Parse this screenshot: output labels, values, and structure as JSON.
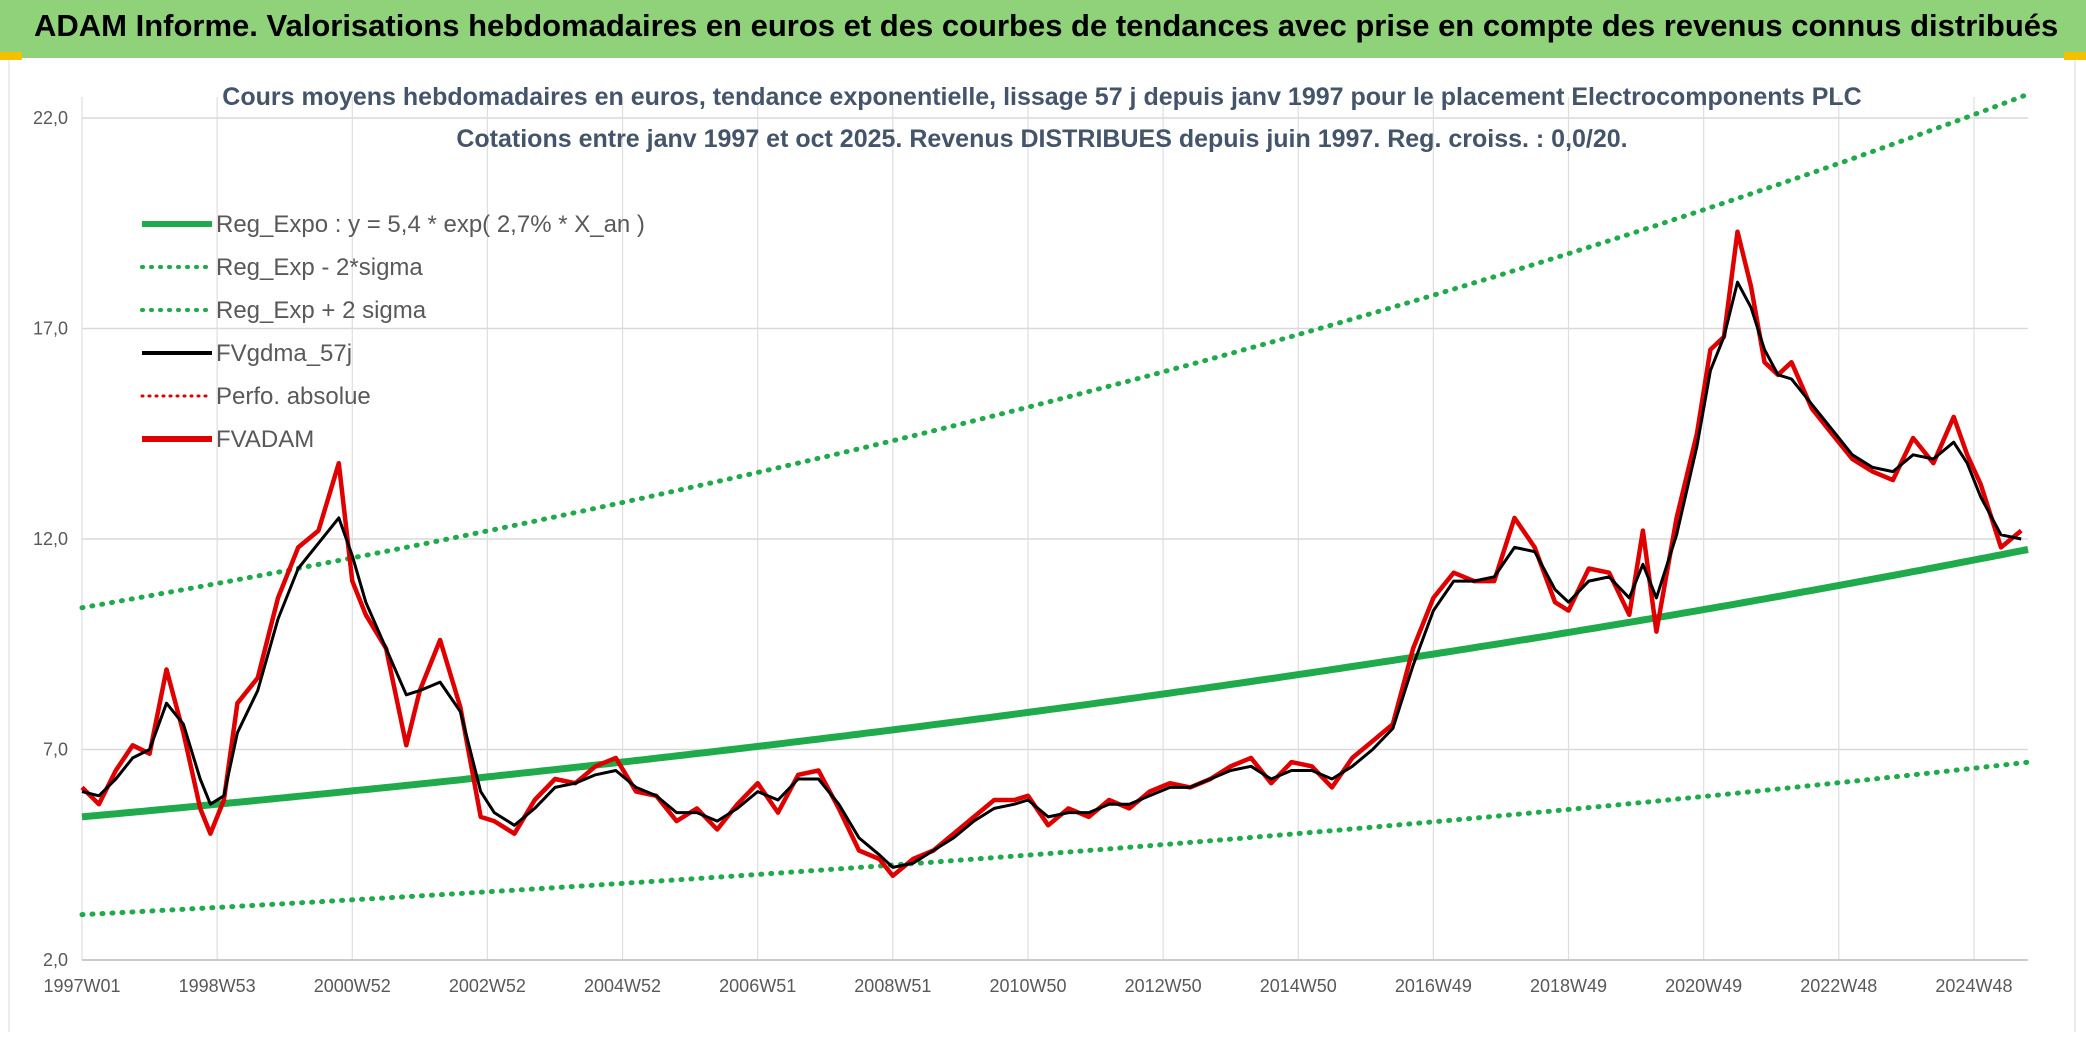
{
  "header": {
    "title": "ADAM Informe. Valorisations hebdomadaires en euros et des courbes de tendances avec prise en compte des revenus connus distribués",
    "background": "#8fd27a"
  },
  "chart_data": {
    "type": "line",
    "title": "Cours moyens hebdomadaires en euros, tendance exponentielle, lissage 57 j depuis janv 1997 pour le placement Electrocomponents PLC",
    "subtitle": "Cotations entre janv 1997 et oct 2025. Revenus DISTRIBUES depuis juin 1997. Reg. croiss. : 0,0/20.",
    "xlabel": "",
    "ylabel": "",
    "xlim": [
      1997.0,
      2025.8
    ],
    "ylim": [
      2.0,
      22.5
    ],
    "yticks": [
      "2,0",
      "7,0",
      "12,0",
      "17,0",
      "22,0"
    ],
    "ytick_values": [
      2.0,
      7.0,
      12.0,
      17.0,
      22.0
    ],
    "xticks": [
      "1997W01",
      "1998W53",
      "2000W52",
      "2002W52",
      "2004W52",
      "2006W51",
      "2008W51",
      "2010W50",
      "2012W50",
      "2014W50",
      "2016W49",
      "2018W49",
      "2020W49",
      "2022W48",
      "2024W48"
    ],
    "xtick_values": [
      1997.0,
      1999.0,
      2001.0,
      2003.0,
      2005.0,
      2007.0,
      2009.0,
      2011.0,
      2013.0,
      2015.0,
      2017.0,
      2019.0,
      2021.0,
      2023.0,
      2025.0
    ],
    "grid": true,
    "legend_position": "top-left",
    "legend": [
      {
        "name": "Reg_Expo : y = 5,4 * exp( 2,7% *  X_an )",
        "color": "#1faa4b",
        "style": "solid-thick"
      },
      {
        "name": "Reg_Exp - 2*sigma",
        "color": "#1faa4b",
        "style": "dotted"
      },
      {
        "name": "Reg_Exp + 2 sigma",
        "color": "#1faa4b",
        "style": "dotted"
      },
      {
        "name": "FVgdma_57j",
        "color": "#000000",
        "style": "solid"
      },
      {
        "name": "Perfo. absolue",
        "color": "#e00000",
        "style": "dotted"
      },
      {
        "name": "FVADAM",
        "color": "#e00000",
        "style": "solid-thick"
      }
    ],
    "regression": {
      "a": 5.4,
      "rate": 0.027,
      "x0": 1997.0,
      "lower_factor": 0.57,
      "upper_factor": 1.92
    },
    "x": [
      1997.0,
      1997.25,
      1997.5,
      1997.75,
      1998.0,
      1998.25,
      1998.5,
      1998.75,
      1998.9,
      1999.1,
      1999.3,
      1999.6,
      1999.9,
      2000.2,
      2000.5,
      2000.8,
      2001.0,
      2001.2,
      2001.5,
      2001.8,
      2002.0,
      2002.3,
      2002.6,
      2002.9,
      2003.1,
      2003.4,
      2003.7,
      2004.0,
      2004.3,
      2004.6,
      2004.9,
      2005.2,
      2005.5,
      2005.8,
      2006.1,
      2006.4,
      2006.7,
      2007.0,
      2007.3,
      2007.6,
      2007.9,
      2008.2,
      2008.5,
      2008.8,
      2009.0,
      2009.3,
      2009.6,
      2009.9,
      2010.2,
      2010.5,
      2010.8,
      2011.0,
      2011.3,
      2011.6,
      2011.9,
      2012.2,
      2012.5,
      2012.8,
      2013.1,
      2013.4,
      2013.7,
      2014.0,
      2014.3,
      2014.6,
      2014.9,
      2015.2,
      2015.5,
      2015.8,
      2016.1,
      2016.4,
      2016.7,
      2017.0,
      2017.3,
      2017.6,
      2017.9,
      2018.2,
      2018.5,
      2018.8,
      2019.0,
      2019.3,
      2019.6,
      2019.9,
      2020.1,
      2020.3,
      2020.6,
      2020.9,
      2021.1,
      2021.3,
      2021.5,
      2021.7,
      2021.9,
      2022.1,
      2022.3,
      2022.6,
      2022.9,
      2023.2,
      2023.5,
      2023.8,
      2024.1,
      2024.4,
      2024.7,
      2024.9,
      2025.1,
      2025.4,
      2025.7
    ],
    "fvadam": [
      6.1,
      5.7,
      6.5,
      7.1,
      6.9,
      8.9,
      7.4,
      5.6,
      5.0,
      5.8,
      8.1,
      8.7,
      10.6,
      11.8,
      12.2,
      13.8,
      11.0,
      10.2,
      9.4,
      7.1,
      8.4,
      9.6,
      8.0,
      5.4,
      5.3,
      5.0,
      5.8,
      6.3,
      6.2,
      6.6,
      6.8,
      6.0,
      5.9,
      5.3,
      5.6,
      5.1,
      5.7,
      6.2,
      5.5,
      6.4,
      6.5,
      5.6,
      4.6,
      4.4,
      4.0,
      4.4,
      4.6,
      5.0,
      5.4,
      5.8,
      5.8,
      5.9,
      5.2,
      5.6,
      5.4,
      5.8,
      5.6,
      6.0,
      6.2,
      6.1,
      6.3,
      6.6,
      6.8,
      6.2,
      6.7,
      6.6,
      6.1,
      6.8,
      7.2,
      7.6,
      9.4,
      10.6,
      11.2,
      11.0,
      11.0,
      12.5,
      11.8,
      10.5,
      10.3,
      11.3,
      11.2,
      10.2,
      12.2,
      9.8,
      12.5,
      14.5,
      16.5,
      16.8,
      19.3,
      18.0,
      16.2,
      15.9,
      16.2,
      15.1,
      14.5,
      13.9,
      13.6,
      13.4,
      14.4,
      13.8,
      14.9,
      14.0,
      13.3,
      11.8,
      12.2
    ],
    "fvgdma_57j": [
      6.0,
      5.9,
      6.3,
      6.8,
      7.0,
      8.1,
      7.6,
      6.3,
      5.7,
      5.9,
      7.4,
      8.4,
      10.1,
      11.3,
      11.9,
      12.5,
      11.6,
      10.5,
      9.4,
      8.3,
      8.4,
      8.6,
      7.9,
      6.0,
      5.5,
      5.2,
      5.6,
      6.1,
      6.2,
      6.4,
      6.5,
      6.1,
      5.9,
      5.5,
      5.5,
      5.3,
      5.6,
      6.0,
      5.8,
      6.3,
      6.3,
      5.7,
      4.9,
      4.5,
      4.2,
      4.3,
      4.6,
      4.9,
      5.3,
      5.6,
      5.7,
      5.8,
      5.4,
      5.5,
      5.5,
      5.7,
      5.7,
      5.9,
      6.1,
      6.1,
      6.3,
      6.5,
      6.6,
      6.3,
      6.5,
      6.5,
      6.3,
      6.6,
      7.0,
      7.5,
      9.0,
      10.3,
      11.0,
      11.0,
      11.1,
      11.8,
      11.7,
      10.8,
      10.5,
      11.0,
      11.1,
      10.6,
      11.4,
      10.6,
      12.1,
      14.2,
      16.0,
      16.8,
      18.1,
      17.5,
      16.5,
      15.9,
      15.8,
      15.2,
      14.6,
      14.0,
      13.7,
      13.6,
      14.0,
      13.9,
      14.3,
      13.8,
      13.0,
      12.1,
      12.0
    ]
  }
}
